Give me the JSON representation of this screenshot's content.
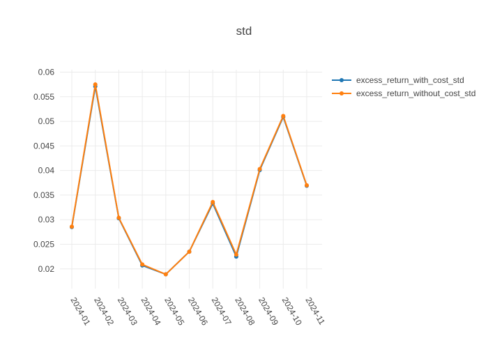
{
  "chart_data": {
    "type": "line",
    "title": "std",
    "xlabel": "",
    "ylabel": "",
    "categories": [
      "2024-01",
      "2024-02",
      "2024-03",
      "2024-04",
      "2024-05",
      "2024-06",
      "2024-07",
      "2024-08",
      "2024-09",
      "2024-10",
      "2024-11"
    ],
    "ylim": [
      0.016,
      0.0605
    ],
    "yticks": [
      "0.02",
      "0.025",
      "0.03",
      "0.035",
      "0.04",
      "0.045",
      "0.05",
      "0.055",
      "0.06"
    ],
    "grid": true,
    "legend_position": "top-right",
    "series": [
      {
        "name": "excess_return_with_cost_std",
        "color": "#1f77b4",
        "values": [
          0.0285,
          0.0571,
          0.0303,
          0.0207,
          0.0189,
          0.0235,
          0.0333,
          0.0225,
          0.0401,
          0.0509,
          0.0369
        ]
      },
      {
        "name": "excess_return_without_cost_std",
        "color": "#ff7f0e",
        "values": [
          0.0286,
          0.0575,
          0.0304,
          0.0209,
          0.0189,
          0.0235,
          0.0336,
          0.0229,
          0.0403,
          0.0511,
          0.037
        ]
      }
    ]
  }
}
